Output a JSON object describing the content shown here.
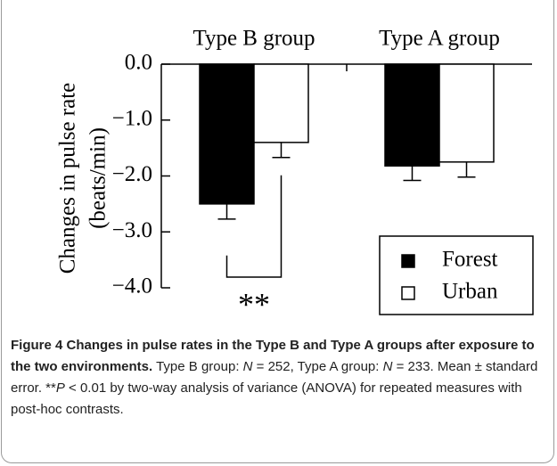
{
  "chart_data": {
    "type": "bar",
    "ylabel": [
      "Changes in pulse rate",
      "(beats/min)"
    ],
    "categories": [
      "Type B group",
      "Type A group"
    ],
    "series": [
      {
        "name": "Forest",
        "color": "#000000",
        "values": [
          -2.5,
          -1.82
        ],
        "errors": [
          0.27,
          0.26
        ]
      },
      {
        "name": "Urban",
        "color": "#ffffff",
        "values": [
          -1.4,
          -1.75
        ],
        "errors": [
          0.27,
          0.27
        ]
      }
    ],
    "ylim": [
      -4,
      0
    ],
    "yticks": [
      {
        "value": 0,
        "label": "0.0"
      },
      {
        "value": -1,
        "label": "−1.0"
      },
      {
        "value": -2,
        "label": "−2.0"
      },
      {
        "value": -3,
        "label": "−3.0"
      },
      {
        "value": -4,
        "label": "−4.0"
      }
    ],
    "legend": "lower right",
    "annotation": "**"
  },
  "caption": {
    "title": "Figure 4 Changes in pulse rates in the Type B and Type A groups after exposure to the two environments.",
    "body": [
      "Type B group: ",
      "N",
      " = 252, Type A group: ",
      "N",
      " = 233. Mean ± standard error. **",
      "P",
      " < 0.01 by two-way analysis of variance (ANOVA) for repeated measures with post-hoc contrasts."
    ]
  }
}
